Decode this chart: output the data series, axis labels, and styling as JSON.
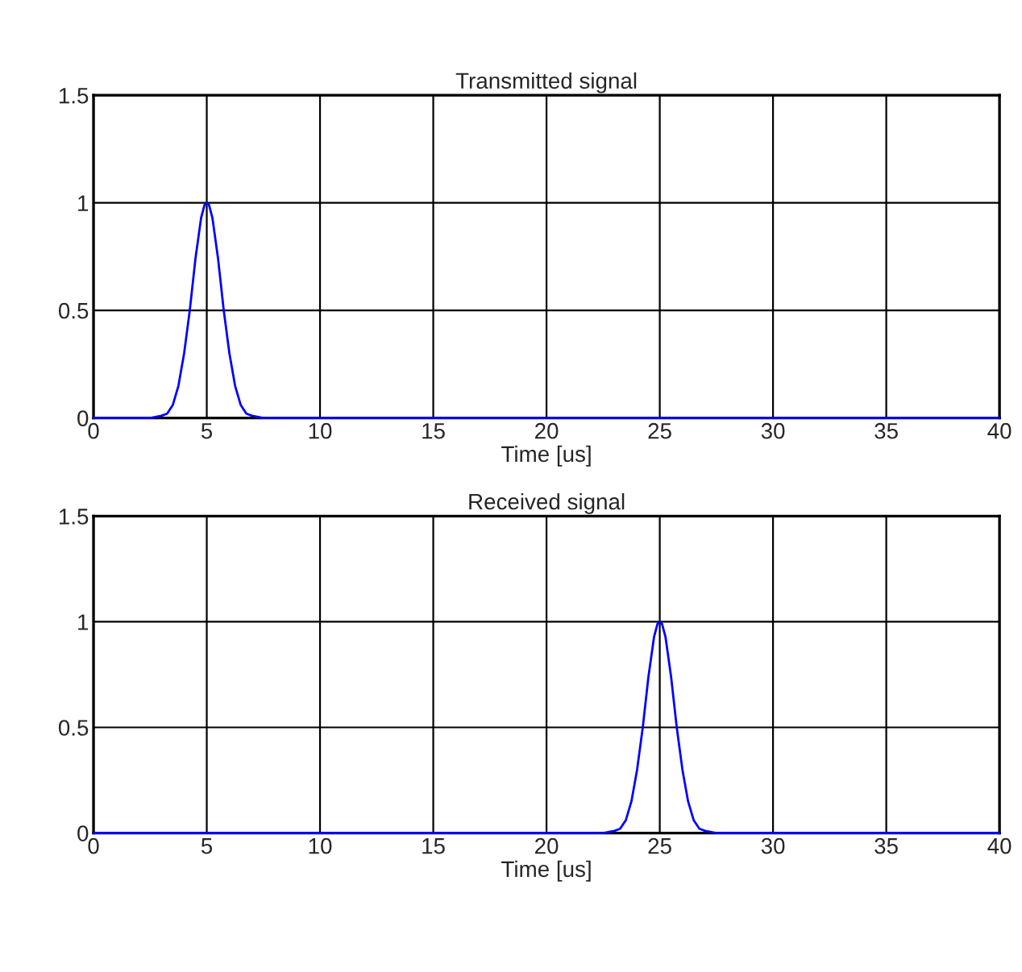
{
  "chart_data": [
    {
      "type": "line",
      "title": "Transmitted signal",
      "xlabel": "Time [us]",
      "xlim": [
        0,
        40
      ],
      "ylim": [
        0,
        1.5
      ],
      "xticks": [
        0,
        5,
        10,
        15,
        20,
        25,
        30,
        35,
        40
      ],
      "yticks": [
        0,
        0.5,
        1,
        1.5
      ],
      "grid": true,
      "series": [
        {
          "color": "#0000ff",
          "x": [
            0,
            2.5,
            3,
            3.25,
            3.5,
            3.75,
            4,
            4.25,
            4.5,
            4.75,
            4.9,
            5,
            5.1,
            5.25,
            5.5,
            5.75,
            6,
            6.25,
            6.5,
            6.75,
            7,
            7.5,
            40
          ],
          "values": [
            0,
            0,
            0.01,
            0.02,
            0.06,
            0.15,
            0.3,
            0.5,
            0.74,
            0.93,
            0.99,
            1,
            0.99,
            0.93,
            0.74,
            0.5,
            0.3,
            0.15,
            0.06,
            0.02,
            0.01,
            0,
            0
          ]
        }
      ]
    },
    {
      "type": "line",
      "title": "Received signal",
      "xlabel": "Time [us]",
      "xlim": [
        0,
        40
      ],
      "ylim": [
        0,
        1.5
      ],
      "xticks": [
        0,
        5,
        10,
        15,
        20,
        25,
        30,
        35,
        40
      ],
      "yticks": [
        0,
        0.5,
        1,
        1.5
      ],
      "grid": true,
      "series": [
        {
          "color": "#0000ff",
          "x": [
            0,
            22.5,
            23,
            23.25,
            23.5,
            23.75,
            24,
            24.25,
            24.5,
            24.75,
            24.9,
            25,
            25.1,
            25.25,
            25.5,
            25.75,
            26,
            26.25,
            26.5,
            26.75,
            27,
            27.5,
            40
          ],
          "values": [
            0,
            0,
            0.01,
            0.02,
            0.06,
            0.15,
            0.3,
            0.5,
            0.74,
            0.93,
            0.99,
            1,
            0.99,
            0.93,
            0.74,
            0.5,
            0.3,
            0.15,
            0.06,
            0.02,
            0.01,
            0,
            0
          ]
        }
      ]
    }
  ]
}
